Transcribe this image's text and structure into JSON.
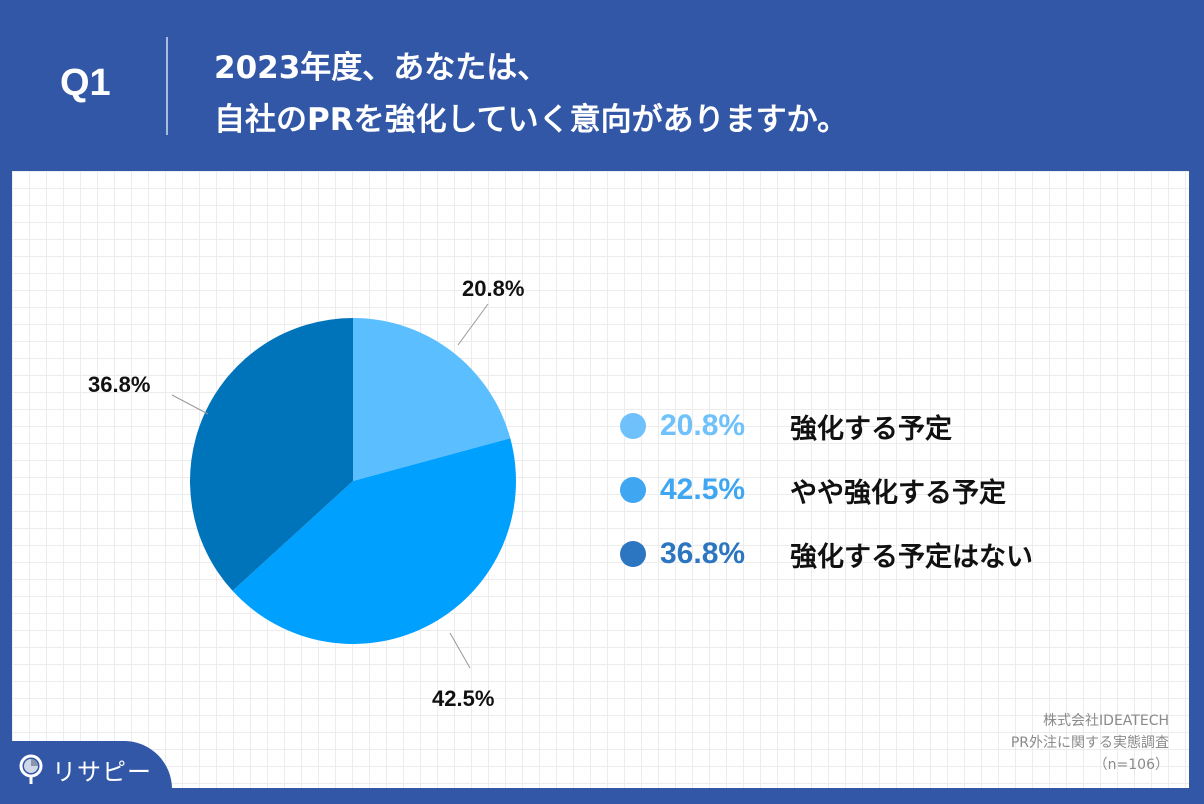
{
  "header": {
    "question_number": "Q1",
    "title_line1": "2023年度、あなたは、",
    "title_line2": "自社のPRを強化していく意向がありますか。"
  },
  "chart_data": {
    "type": "pie",
    "title": "2023年度、あなたは、自社のPRを強化していく意向がありますか。",
    "categories": [
      "強化する予定",
      "やや強化する予定",
      "強化する予定はない"
    ],
    "values": [
      20.8,
      42.5,
      36.8
    ],
    "labels": [
      "20.8%",
      "42.5%",
      "36.8%"
    ],
    "colors": [
      "#5bbfff",
      "#00a0ff",
      "#0074bb"
    ],
    "start_angle": "12 o'clock, clockwise",
    "legend_position": "right",
    "n": 106
  },
  "legend": [
    {
      "pct": "20.8%",
      "label": "強化する予定",
      "color": "#6ec1fb"
    },
    {
      "pct": "42.5%",
      "label": "やや強化する予定",
      "color": "#3fa6f2"
    },
    {
      "pct": "36.8%",
      "label": "強化する予定はない",
      "color": "#2c75c0"
    }
  ],
  "data_labels": [
    "20.8%",
    "42.5%",
    "36.8%"
  ],
  "source": {
    "company": "株式会社IDEATECH",
    "survey": "PR外注に関する実態調査",
    "sample": "（n=106）"
  },
  "logo": {
    "text": "リサピー"
  }
}
